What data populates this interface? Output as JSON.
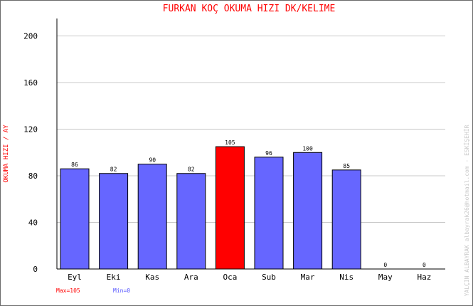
{
  "chart_data": {
    "type": "bar",
    "title": "FURKAN KOÇ    OKUMA HIZI  DK/KELIME",
    "ylabel": "OKUMA HIZI / AY",
    "categories": [
      "Eyl",
      "Eki",
      "Kas",
      "Ara",
      "Oca",
      "Sub",
      "Mar",
      "Nis",
      "May",
      "Haz"
    ],
    "values": [
      86,
      82,
      90,
      82,
      105,
      96,
      100,
      85,
      0,
      0
    ],
    "ylim": [
      0,
      215
    ],
    "yticks": [
      0,
      40,
      80,
      120,
      160,
      200
    ],
    "grid": true,
    "max_label": "Max=105",
    "min_label": "Min=0",
    "side_note": "YALÇIN ALBAYRAK   albayrak26@hotmail.com - ESKİŞEHİR",
    "colors": {
      "bar": "#6666ff",
      "bar_max": "#ff0000",
      "title": "#ff0000",
      "ylabel": "#ff0000",
      "max_label": "#ff0000",
      "min_label": "#5555ff",
      "side_note": "#c8c8c8",
      "grid": "#c8c8c8"
    }
  }
}
